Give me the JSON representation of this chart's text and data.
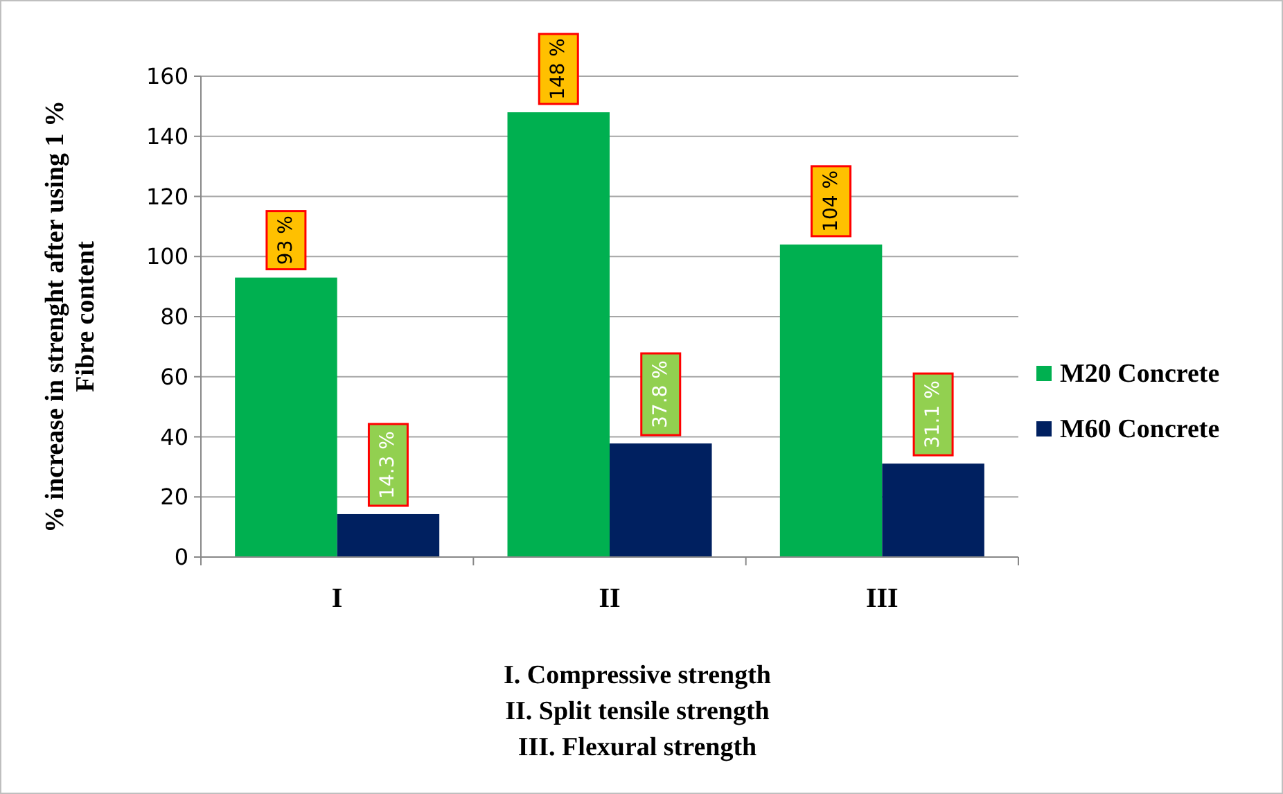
{
  "chart_data": {
    "type": "bar",
    "ylabel": "% increase in strenght after using 1 % Fibre content",
    "categories": [
      "I",
      "II",
      "III"
    ],
    "series": [
      {
        "name": "M20 Concrete",
        "color": "#00b050",
        "values": [
          93,
          148,
          104
        ],
        "value_labels": [
          "93 %",
          "148 %",
          "104 %"
        ]
      },
      {
        "name": "M60 Concrete",
        "color": "#002060",
        "values": [
          14.3,
          37.8,
          31.1
        ],
        "value_labels": [
          "14.3 %",
          "37.8 %",
          "31.1 %"
        ]
      }
    ],
    "ylim": [
      0,
      160
    ],
    "yticks": [
      0,
      20,
      40,
      60,
      80,
      100,
      120,
      140,
      160
    ],
    "grid": "y",
    "legend": "right",
    "annotations": [
      "I. Compressive strength",
      "II. Split tensile strength",
      "III. Flexural strength"
    ]
  }
}
